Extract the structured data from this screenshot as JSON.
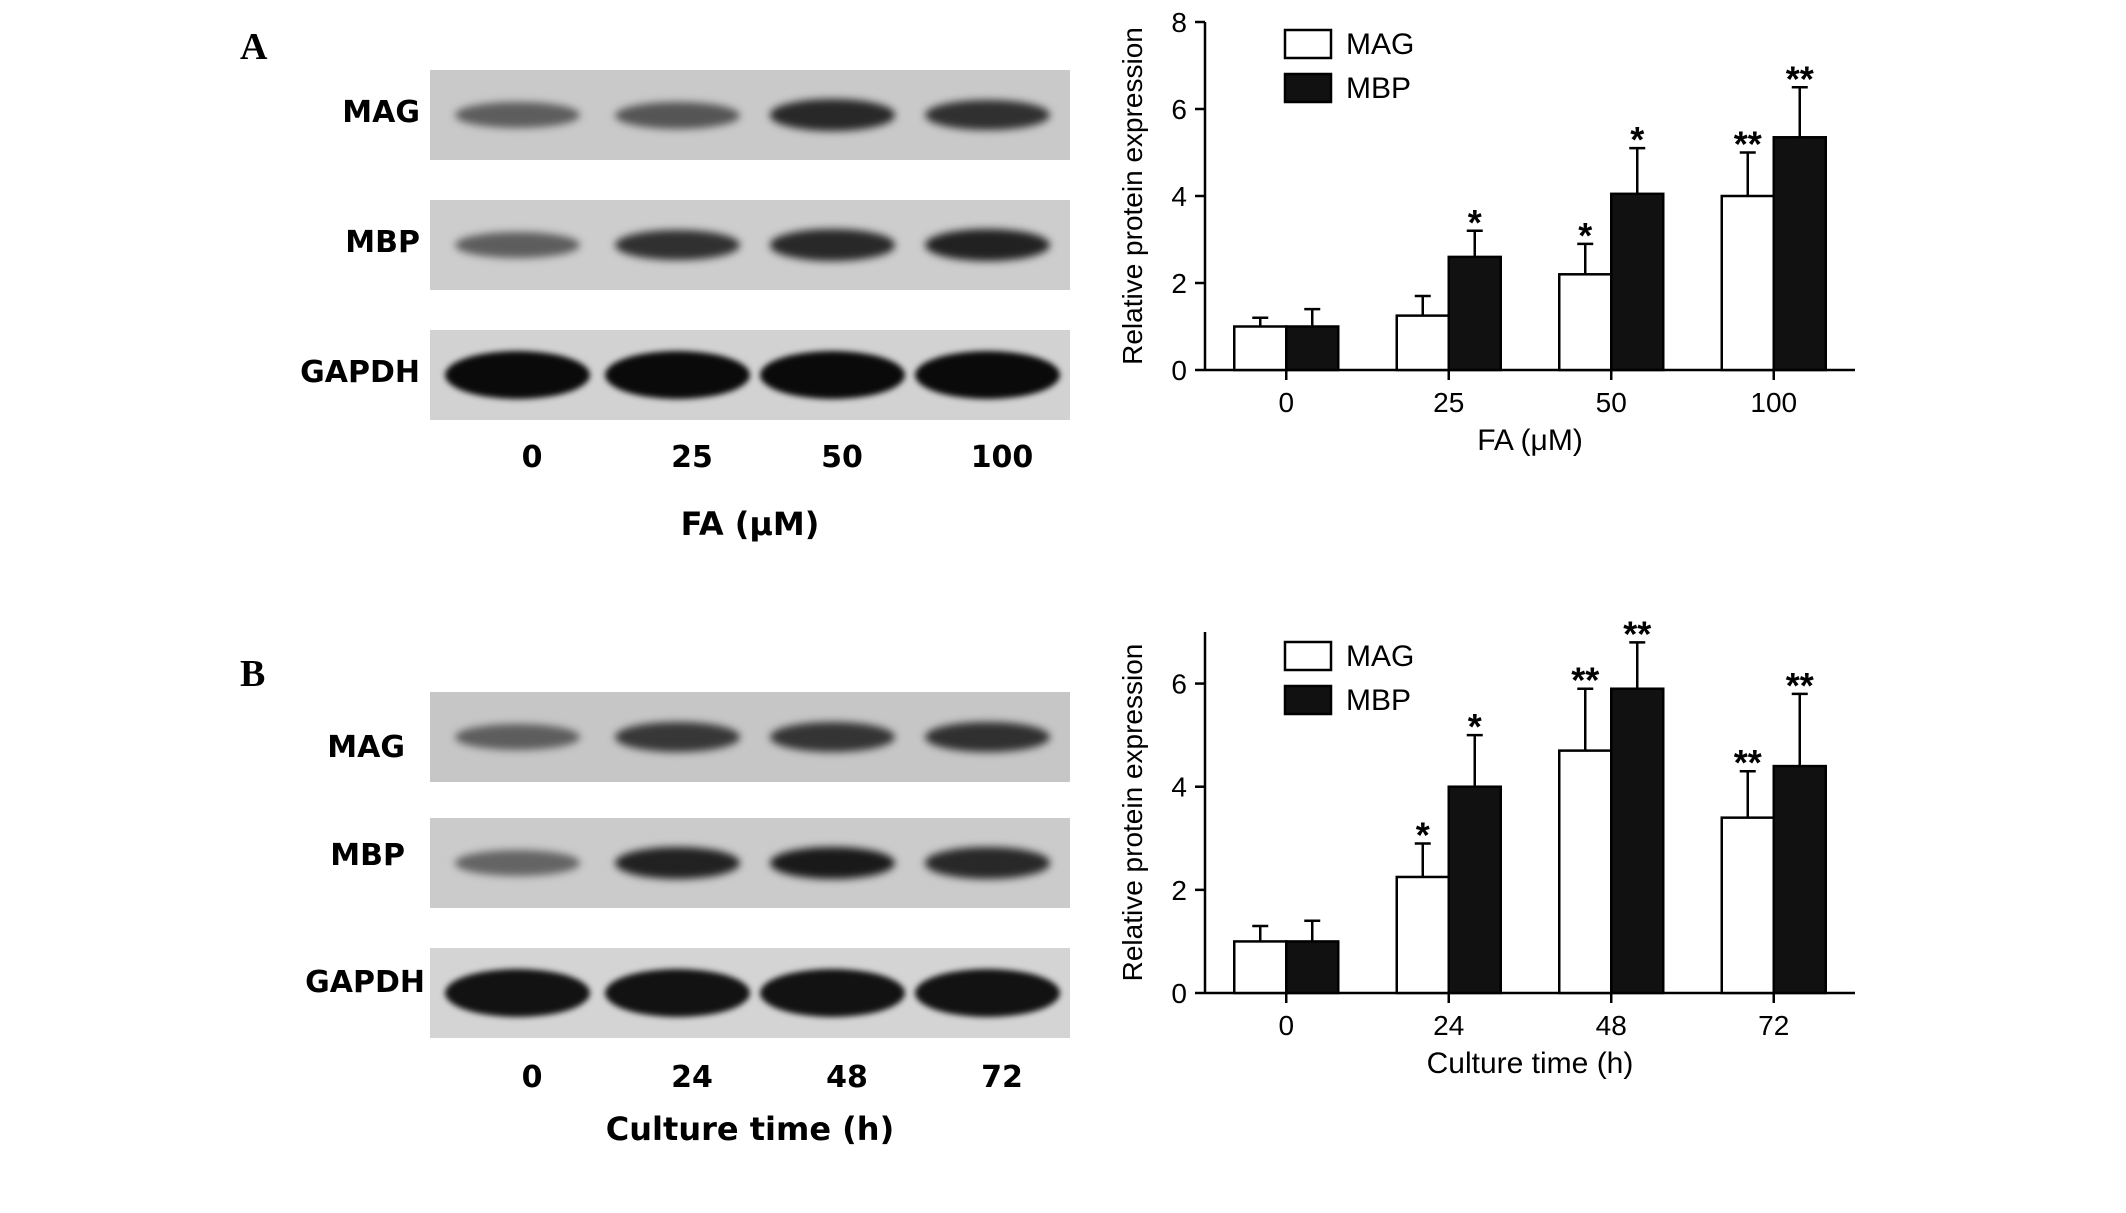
{
  "panels": [
    {
      "id": "A",
      "label": "A",
      "blot": {
        "rows": [
          {
            "label": "MAG",
            "bands": [
              0.45,
              0.5,
              0.8,
              0.75
            ]
          },
          {
            "label": "MBP",
            "bands": [
              0.45,
              0.75,
              0.8,
              0.85
            ]
          },
          {
            "label": "GAPDH",
            "bands": [
              1.0,
              1.0,
              1.0,
              1.0
            ]
          }
        ],
        "lanes": [
          "0",
          "25",
          "50",
          "100"
        ],
        "xtitle": "FA (μM)"
      }
    },
    {
      "id": "B",
      "label": "B",
      "blot": {
        "rows": [
          {
            "label": "MAG",
            "bands": [
              0.45,
              0.7,
              0.72,
              0.75
            ]
          },
          {
            "label": "MBP",
            "bands": [
              0.4,
              0.85,
              0.9,
              0.8
            ]
          },
          {
            "label": "GAPDH",
            "bands": [
              0.95,
              0.95,
              0.95,
              0.95
            ]
          }
        ],
        "lanes": [
          "0",
          "24",
          "48",
          "72"
        ],
        "xtitle": "Culture time (h)"
      }
    }
  ],
  "chart_data": [
    {
      "type": "bar",
      "title": "",
      "xlabel": "FA (μM)",
      "ylabel": "Relative protein expression",
      "categories": [
        "0",
        "25",
        "50",
        "100"
      ],
      "ylim": [
        0,
        8
      ],
      "yticks": [
        0,
        2,
        4,
        6,
        8
      ],
      "legend": "top-left",
      "series": [
        {
          "name": "MAG",
          "color": "#ffffff",
          "values": [
            1.0,
            1.25,
            2.2,
            4.0
          ],
          "errors": [
            0.2,
            0.45,
            0.7,
            1.0
          ],
          "significance": [
            "",
            "",
            "*",
            "**"
          ]
        },
        {
          "name": "MBP",
          "color": "#111111",
          "values": [
            1.0,
            2.6,
            4.05,
            5.35
          ],
          "errors": [
            0.4,
            0.6,
            1.05,
            1.15
          ],
          "significance": [
            "",
            "*",
            "*",
            "**"
          ]
        }
      ]
    },
    {
      "type": "bar",
      "title": "",
      "xlabel": "Culture time (h)",
      "ylabel": "Relative protein expression",
      "categories": [
        "0",
        "24",
        "48",
        "72"
      ],
      "ylim": [
        0,
        7
      ],
      "yticks": [
        0,
        2,
        4,
        6
      ],
      "legend": "top-left",
      "series": [
        {
          "name": "MAG",
          "color": "#ffffff",
          "values": [
            1.0,
            2.25,
            4.7,
            3.4
          ],
          "errors": [
            0.3,
            0.65,
            1.2,
            0.9
          ],
          "significance": [
            "",
            "*",
            "**",
            "**"
          ]
        },
        {
          "name": "MBP",
          "color": "#111111",
          "values": [
            1.0,
            4.0,
            5.9,
            4.4
          ],
          "errors": [
            0.4,
            1.0,
            0.9,
            1.4
          ],
          "significance": [
            "",
            "*",
            "**",
            "**"
          ]
        }
      ]
    }
  ]
}
